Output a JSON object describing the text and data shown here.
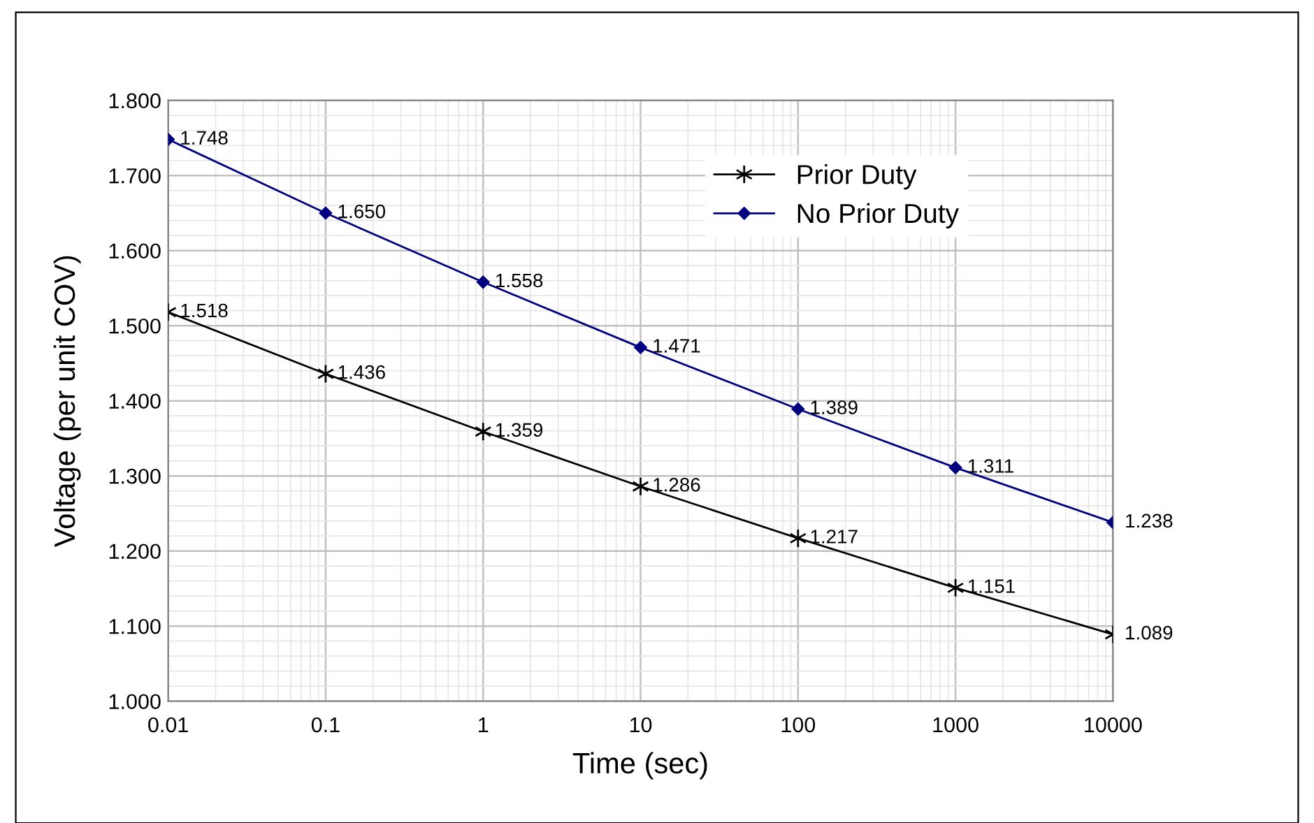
{
  "chart_data": {
    "type": "line",
    "xlabel": "Time (sec)",
    "ylabel": "Voltage (per unit COV)",
    "log": "x",
    "grid": true,
    "legend": "top right",
    "line_style": "solid",
    "x": [
      0.01,
      0.1,
      1,
      10,
      100,
      1000,
      10000
    ],
    "xlim": [
      0.01,
      10000
    ],
    "xticks": [
      0.01,
      0.1,
      1,
      10,
      100,
      1000,
      10000
    ],
    "ylim": [
      1.0,
      1.8
    ],
    "yticks": [
      {
        "value": 1.0,
        "label": "1.000"
      },
      {
        "value": 1.1,
        "label": "1.100"
      },
      {
        "value": 1.2,
        "label": "1.200"
      },
      {
        "value": 1.3,
        "label": "1.300"
      },
      {
        "value": 1.4,
        "label": "1.400"
      },
      {
        "value": 1.5,
        "label": "1.500"
      },
      {
        "value": 1.6,
        "label": "1.600"
      },
      {
        "value": 1.7,
        "label": "1.700"
      },
      {
        "value": 1.8,
        "label": "1.800"
      }
    ],
    "series": [
      {
        "name": "Prior Duty",
        "color": "#000000",
        "marker": "cross",
        "values": [
          1.518,
          1.436,
          1.359,
          1.286,
          1.217,
          1.151,
          1.089
        ],
        "value_labels": [
          "1.518",
          "1.436",
          "1.359",
          "1.286",
          "1.217",
          "1.151",
          "1.089"
        ]
      },
      {
        "name": "No Prior Duty",
        "color": "#000080",
        "marker": "diamond",
        "values": [
          1.748,
          1.65,
          1.558,
          1.471,
          1.389,
          1.311,
          1.238
        ],
        "value_labels": [
          "1.748",
          "1.650",
          "1.558",
          "1.471",
          "1.389",
          "1.311",
          "1.238"
        ]
      }
    ]
  }
}
